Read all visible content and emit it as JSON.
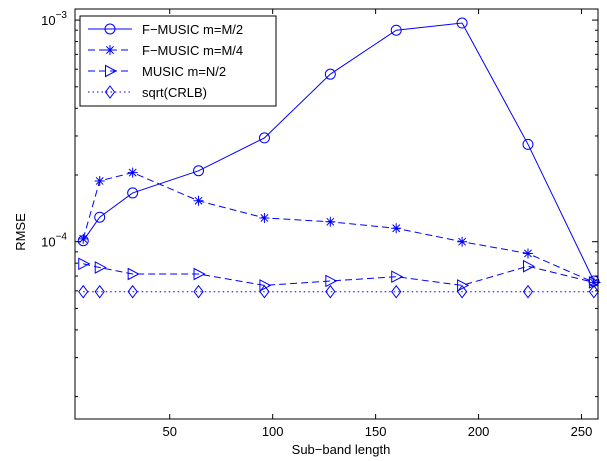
{
  "chart_data": {
    "type": "line",
    "title": "",
    "xlabel": "Sub−band length",
    "ylabel": "RMSE",
    "xlim": [
      4,
      258
    ],
    "ylim": [
      1.585e-05,
      0.001122
    ],
    "yscale": "log",
    "grid": false,
    "legend_position": "top-left",
    "x_ticks": [
      {
        "value": 50,
        "label": "50"
      },
      {
        "value": 100,
        "label": "100"
      },
      {
        "value": 150,
        "label": "150"
      },
      {
        "value": 200,
        "label": "200"
      },
      {
        "value": 250,
        "label": "250"
      }
    ],
    "y_ticks": [
      {
        "value": 0.0001,
        "base": "10",
        "exp": "−4"
      },
      {
        "value": 0.001,
        "base": "10",
        "exp": "−3"
      }
    ],
    "series": [
      {
        "name": "F−MUSIC m=M/2",
        "marker": "circle",
        "line": "solid",
        "color": "#0000ff",
        "x": [
          8,
          16,
          32,
          64,
          96,
          128,
          160,
          192,
          224,
          256
        ],
        "y": [
          0.000101,
          0.000129,
          0.000166,
          0.000209,
          0.000294,
          0.00057,
          0.0009,
          0.00097,
          0.000275,
          6.65e-05
        ]
      },
      {
        "name": "F−MUSIC m=M/4",
        "marker": "star",
        "line": "dashed",
        "color": "#0000ff",
        "x": [
          8,
          16,
          32,
          64,
          96,
          128,
          160,
          192,
          224,
          256
        ],
        "y": [
          0.000103,
          0.000188,
          0.000205,
          0.000153,
          0.000128,
          0.000123,
          0.000115,
          0.0001,
          8.85e-05,
          6.55e-05
        ]
      },
      {
        "name": "MUSIC m=N/2",
        "marker": "triangle-right",
        "line": "dashed",
        "color": "#0000ff",
        "x": [
          8,
          16,
          32,
          64,
          96,
          128,
          160,
          192,
          224,
          256
        ],
        "y": [
          7.95e-05,
          7.65e-05,
          7.15e-05,
          7.15e-05,
          6.35e-05,
          6.65e-05,
          6.95e-05,
          6.35e-05,
          7.75e-05,
          6.55e-05
        ]
      },
      {
        "name": "sqrt(CRLB)",
        "marker": "diamond",
        "line": "dotted",
        "color": "#0000ff",
        "x": [
          8,
          16,
          32,
          64,
          96,
          128,
          160,
          192,
          224,
          256
        ],
        "y": [
          5.95e-05,
          5.95e-05,
          5.95e-05,
          5.95e-05,
          5.95e-05,
          5.95e-05,
          5.95e-05,
          5.95e-05,
          5.95e-05,
          5.95e-05
        ]
      }
    ]
  }
}
